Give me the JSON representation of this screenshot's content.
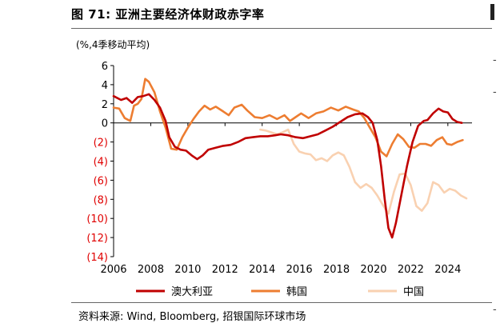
{
  "figure": {
    "title": "图 71: 亚洲主要经济体财政赤字率",
    "unit_label": "(%,4季移动平均)",
    "source": "资料来源: Wind, Bloomberg, 招银国际环球市场",
    "edge_glyphs": [
      "-",
      "-",
      "-"
    ]
  },
  "chart_data": {
    "type": "line",
    "title": "亚洲主要经济体财政赤字率",
    "xlabel": "",
    "ylabel": "(%,4季移动平均)",
    "xlim": [
      2006,
      2025.3
    ],
    "ylim": [
      -14,
      6
    ],
    "x_ticks": [
      2006,
      2008,
      2010,
      2012,
      2014,
      2016,
      2018,
      2020,
      2022,
      2024
    ],
    "x_tick_labels": [
      "2006",
      "2008",
      "2010",
      "2012",
      "2014",
      "2016",
      "2018",
      "2020",
      "2022",
      "2024"
    ],
    "y_ticks": [
      6,
      4,
      2,
      0,
      -2,
      -4,
      -6,
      -8,
      -10,
      -12,
      -14
    ],
    "y_tick_labels": [
      "6",
      "4",
      "2",
      "0",
      "(2)",
      "(4)",
      "(6)",
      "(8)",
      "(10)",
      "(12)",
      "(14)"
    ],
    "negative_tick_color": "#e00000",
    "grid": false,
    "legend_position": "bottom",
    "series": [
      {
        "name": "澳大利亚",
        "color": "#c00000",
        "points": [
          [
            2006.0,
            2.8
          ],
          [
            2006.4,
            2.4
          ],
          [
            2006.7,
            2.6
          ],
          [
            2007.0,
            2.1
          ],
          [
            2007.3,
            2.7
          ],
          [
            2007.6,
            2.8
          ],
          [
            2007.9,
            3.0
          ],
          [
            2008.2,
            2.4
          ],
          [
            2008.5,
            1.6
          ],
          [
            2008.8,
            0.2
          ],
          [
            2009.0,
            -1.5
          ],
          [
            2009.3,
            -2.5
          ],
          [
            2009.6,
            -2.8
          ],
          [
            2009.9,
            -2.9
          ],
          [
            2010.2,
            -3.4
          ],
          [
            2010.5,
            -3.8
          ],
          [
            2010.8,
            -3.4
          ],
          [
            2011.1,
            -2.8
          ],
          [
            2011.5,
            -2.6
          ],
          [
            2011.9,
            -2.4
          ],
          [
            2012.3,
            -2.3
          ],
          [
            2012.7,
            -2.0
          ],
          [
            2013.1,
            -1.6
          ],
          [
            2013.5,
            -1.5
          ],
          [
            2013.9,
            -1.4
          ],
          [
            2014.3,
            -1.4
          ],
          [
            2014.7,
            -1.3
          ],
          [
            2015.0,
            -1.2
          ],
          [
            2015.4,
            -1.3
          ],
          [
            2015.8,
            -1.5
          ],
          [
            2016.2,
            -1.6
          ],
          [
            2016.6,
            -1.4
          ],
          [
            2017.0,
            -1.2
          ],
          [
            2017.4,
            -0.8
          ],
          [
            2017.8,
            -0.4
          ],
          [
            2018.2,
            0.1
          ],
          [
            2018.6,
            0.6
          ],
          [
            2019.0,
            0.9
          ],
          [
            2019.4,
            1.0
          ],
          [
            2019.7,
            0.6
          ],
          [
            2019.95,
            0.0
          ],
          [
            2020.2,
            -1.8
          ],
          [
            2020.4,
            -4.5
          ],
          [
            2020.6,
            -8.0
          ],
          [
            2020.8,
            -11.0
          ],
          [
            2021.0,
            -12.0
          ],
          [
            2021.2,
            -10.5
          ],
          [
            2021.5,
            -7.5
          ],
          [
            2021.8,
            -4.5
          ],
          [
            2022.1,
            -2.0
          ],
          [
            2022.4,
            -0.3
          ],
          [
            2022.7,
            0.2
          ],
          [
            2022.9,
            0.3
          ],
          [
            2023.2,
            1.0
          ],
          [
            2023.5,
            1.5
          ],
          [
            2023.75,
            1.2
          ],
          [
            2024.0,
            1.1
          ],
          [
            2024.25,
            0.4
          ],
          [
            2024.5,
            0.1
          ],
          [
            2024.75,
            0.0
          ]
        ]
      },
      {
        "name": "韩国",
        "color": "#ed7d31",
        "points": [
          [
            2006.0,
            1.6
          ],
          [
            2006.3,
            1.5
          ],
          [
            2006.6,
            0.5
          ],
          [
            2006.9,
            0.2
          ],
          [
            2007.1,
            1.8
          ],
          [
            2007.3,
            2.0
          ],
          [
            2007.5,
            2.5
          ],
          [
            2007.7,
            4.6
          ],
          [
            2007.9,
            4.3
          ],
          [
            2008.2,
            3.2
          ],
          [
            2008.5,
            1.2
          ],
          [
            2008.8,
            -0.5
          ],
          [
            2009.1,
            -2.7
          ],
          [
            2009.4,
            -2.8
          ],
          [
            2009.7,
            -1.5
          ],
          [
            2010.0,
            -0.5
          ],
          [
            2010.3,
            0.4
          ],
          [
            2010.6,
            1.2
          ],
          [
            2010.9,
            1.8
          ],
          [
            2011.2,
            1.4
          ],
          [
            2011.5,
            1.7
          ],
          [
            2011.9,
            1.2
          ],
          [
            2012.2,
            0.8
          ],
          [
            2012.5,
            1.6
          ],
          [
            2012.9,
            1.9
          ],
          [
            2013.2,
            1.3
          ],
          [
            2013.6,
            0.6
          ],
          [
            2014.0,
            0.5
          ],
          [
            2014.4,
            0.8
          ],
          [
            2014.8,
            0.4
          ],
          [
            2015.2,
            0.8
          ],
          [
            2015.5,
            0.2
          ],
          [
            2015.8,
            0.6
          ],
          [
            2016.1,
            1.0
          ],
          [
            2016.5,
            0.5
          ],
          [
            2016.9,
            1.0
          ],
          [
            2017.3,
            1.2
          ],
          [
            2017.7,
            1.6
          ],
          [
            2018.1,
            1.3
          ],
          [
            2018.5,
            1.7
          ],
          [
            2018.9,
            1.4
          ],
          [
            2019.2,
            1.2
          ],
          [
            2019.5,
            0.5
          ],
          [
            2019.8,
            -0.5
          ],
          [
            2020.1,
            -1.5
          ],
          [
            2020.4,
            -3.0
          ],
          [
            2020.7,
            -3.5
          ],
          [
            2021.0,
            -2.2
          ],
          [
            2021.3,
            -1.2
          ],
          [
            2021.6,
            -1.7
          ],
          [
            2021.9,
            -2.5
          ],
          [
            2022.2,
            -2.6
          ],
          [
            2022.5,
            -2.2
          ],
          [
            2022.8,
            -2.2
          ],
          [
            2023.1,
            -2.4
          ],
          [
            2023.4,
            -1.8
          ],
          [
            2023.7,
            -1.5
          ],
          [
            2023.95,
            -2.2
          ],
          [
            2024.2,
            -2.3
          ],
          [
            2024.5,
            -2.0
          ],
          [
            2024.8,
            -1.8
          ]
        ]
      },
      {
        "name": "中国",
        "color": "#f9d1b1",
        "points": [
          [
            2013.9,
            -0.7
          ],
          [
            2014.2,
            -0.8
          ],
          [
            2014.5,
            -1.0
          ],
          [
            2014.8,
            -1.2
          ],
          [
            2015.1,
            -1.0
          ],
          [
            2015.4,
            -0.7
          ],
          [
            2015.7,
            -2.2
          ],
          [
            2016.0,
            -3.0
          ],
          [
            2016.3,
            -3.2
          ],
          [
            2016.6,
            -3.3
          ],
          [
            2016.9,
            -3.9
          ],
          [
            2017.2,
            -3.7
          ],
          [
            2017.5,
            -4.0
          ],
          [
            2017.8,
            -3.4
          ],
          [
            2018.1,
            -3.1
          ],
          [
            2018.4,
            -3.4
          ],
          [
            2018.7,
            -4.6
          ],
          [
            2019.0,
            -6.2
          ],
          [
            2019.3,
            -6.8
          ],
          [
            2019.6,
            -6.4
          ],
          [
            2019.9,
            -6.8
          ],
          [
            2020.2,
            -7.6
          ],
          [
            2020.5,
            -8.6
          ],
          [
            2020.8,
            -9.5
          ],
          [
            2021.1,
            -7.2
          ],
          [
            2021.4,
            -5.4
          ],
          [
            2021.7,
            -5.3
          ],
          [
            2022.0,
            -6.5
          ],
          [
            2022.3,
            -8.7
          ],
          [
            2022.6,
            -9.2
          ],
          [
            2022.9,
            -8.4
          ],
          [
            2023.2,
            -6.2
          ],
          [
            2023.5,
            -6.5
          ],
          [
            2023.8,
            -7.3
          ],
          [
            2024.1,
            -6.9
          ],
          [
            2024.4,
            -7.1
          ],
          [
            2024.7,
            -7.6
          ],
          [
            2025.0,
            -7.9
          ]
        ]
      }
    ]
  }
}
